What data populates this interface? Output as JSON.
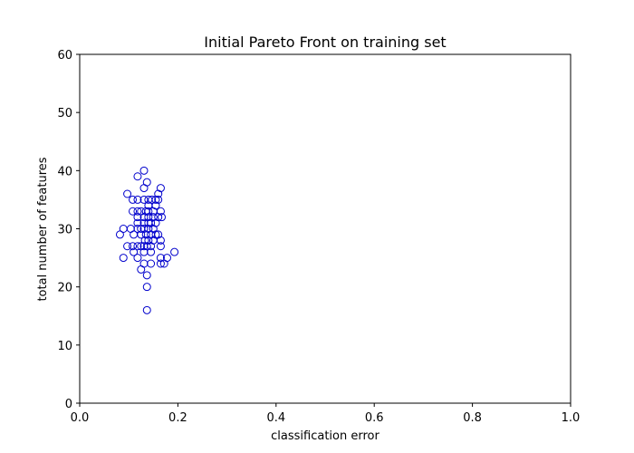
{
  "chart_data": {
    "type": "scatter",
    "title": "Initial Pareto Front on training set",
    "xlabel": "classification error",
    "ylabel": "total number of features",
    "xlim": [
      0.0,
      1.0
    ],
    "ylim": [
      0,
      60
    ],
    "xticks": [
      "0.0",
      "0.2",
      "0.4",
      "0.6",
      "0.8",
      "1.0"
    ],
    "yticks": [
      "0",
      "10",
      "20",
      "30",
      "40",
      "50",
      "60"
    ],
    "grid": false,
    "marker": "hollow-circle",
    "marker_color": "#0000cc",
    "points": [
      [
        0.131,
        40
      ],
      [
        0.118,
        39
      ],
      [
        0.137,
        38
      ],
      [
        0.131,
        37
      ],
      [
        0.165,
        37
      ],
      [
        0.097,
        36
      ],
      [
        0.16,
        36
      ],
      [
        0.108,
        35
      ],
      [
        0.118,
        35
      ],
      [
        0.131,
        35
      ],
      [
        0.14,
        35
      ],
      [
        0.147,
        35
      ],
      [
        0.155,
        35
      ],
      [
        0.16,
        35
      ],
      [
        0.14,
        34
      ],
      [
        0.155,
        34
      ],
      [
        0.108,
        33
      ],
      [
        0.118,
        33
      ],
      [
        0.125,
        33
      ],
      [
        0.135,
        33
      ],
      [
        0.14,
        33
      ],
      [
        0.15,
        33
      ],
      [
        0.165,
        33
      ],
      [
        0.118,
        32
      ],
      [
        0.131,
        32
      ],
      [
        0.14,
        32
      ],
      [
        0.15,
        32
      ],
      [
        0.16,
        32
      ],
      [
        0.167,
        32
      ],
      [
        0.118,
        31
      ],
      [
        0.131,
        31
      ],
      [
        0.14,
        31
      ],
      [
        0.145,
        31
      ],
      [
        0.155,
        31
      ],
      [
        0.089,
        30
      ],
      [
        0.104,
        30
      ],
      [
        0.118,
        30
      ],
      [
        0.125,
        30
      ],
      [
        0.131,
        30
      ],
      [
        0.14,
        30
      ],
      [
        0.15,
        30
      ],
      [
        0.082,
        29
      ],
      [
        0.11,
        29
      ],
      [
        0.125,
        29
      ],
      [
        0.135,
        29
      ],
      [
        0.145,
        29
      ],
      [
        0.155,
        29
      ],
      [
        0.16,
        29
      ],
      [
        0.133,
        28
      ],
      [
        0.14,
        28
      ],
      [
        0.15,
        28
      ],
      [
        0.165,
        28
      ],
      [
        0.097,
        27
      ],
      [
        0.108,
        27
      ],
      [
        0.118,
        27
      ],
      [
        0.125,
        27
      ],
      [
        0.131,
        27
      ],
      [
        0.137,
        27
      ],
      [
        0.145,
        27
      ],
      [
        0.165,
        27
      ],
      [
        0.11,
        26
      ],
      [
        0.131,
        26
      ],
      [
        0.145,
        26
      ],
      [
        0.193,
        26
      ],
      [
        0.089,
        25
      ],
      [
        0.118,
        25
      ],
      [
        0.165,
        25
      ],
      [
        0.178,
        25
      ],
      [
        0.131,
        24
      ],
      [
        0.145,
        24
      ],
      [
        0.165,
        24
      ],
      [
        0.172,
        24
      ],
      [
        0.125,
        23
      ],
      [
        0.137,
        22
      ],
      [
        0.137,
        20
      ],
      [
        0.137,
        16
      ]
    ]
  }
}
